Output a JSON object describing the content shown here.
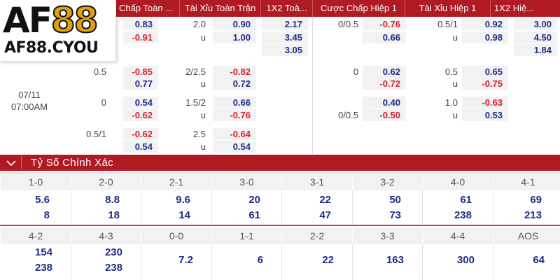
{
  "logo": {
    "brand_a": "AF",
    "brand_n": "88",
    "site": "AF88.CYOU"
  },
  "odds_table": {
    "headers": [
      "Chấp Toàn ...",
      "Tài Xỉu Toàn Trận",
      "1X2 Toà...",
      "Cược Chấp Hiệp 1",
      "Tài Xỉu Hiệp 1",
      "1X2 Hiệ..."
    ],
    "match_date": "07/11",
    "match_time": "07:00AM",
    "rows": [
      {
        "ah_line": "",
        "ah_home": "0.83",
        "ah_away": "-0.91",
        "ou_line": "2.0",
        "ou_u": "u",
        "ou_over": "0.90",
        "ou_under": "1.00",
        "x12": [
          "2.17",
          "3.45",
          "3.05"
        ],
        "h1_ah_line_top": "0/0.5",
        "h1_ah_line_bot": "",
        "h1_ah_a": "-0.76",
        "h1_ah_b": "0.66",
        "h1_ou_line": "0.5/1",
        "h1_ou_u": "u",
        "h1_ou_a": "0.92",
        "h1_ou_b": "0.98",
        "h1_x12": [
          "3.00",
          "4.50",
          "1.84"
        ]
      },
      {
        "ah_line": "0.5",
        "ah_home": "-0.85",
        "ah_away": "0.77",
        "ou_line": "2/2.5",
        "ou_u": "u",
        "ou_over": "-0.82",
        "ou_under": "0.72",
        "h1_ah_line_top": "0",
        "h1_ah_line_bot": "",
        "h1_ah_a": "0.62",
        "h1_ah_b": "-0.72",
        "h1_ou_line": "0.5",
        "h1_ou_u": "u",
        "h1_ou_a": "0.65",
        "h1_ou_b": "-0.75"
      },
      {
        "ah_line": "0",
        "ah_home": "0.54",
        "ah_away": "-0.62",
        "ou_line": "1.5/2",
        "ou_u": "u",
        "ou_over": "0.66",
        "ou_under": "-0.76",
        "h1_ah_line_top": "",
        "h1_ah_line_bot": "0/0.5",
        "h1_ah_a": "0.40",
        "h1_ah_b": "-0.50",
        "h1_ou_line": "1.0",
        "h1_ou_u": "u",
        "h1_ou_a": "-0.63",
        "h1_ou_b": "0.53"
      },
      {
        "ah_line": "0.5/1",
        "ah_home": "-0.62",
        "ah_away": "0.54",
        "ou_line": "2.5",
        "ou_u": "u",
        "ou_over": "-0.64",
        "ou_under": "0.54"
      }
    ]
  },
  "correct_score": {
    "title": "Tỷ Số Chính Xác",
    "row1": {
      "scores": [
        "1-0",
        "2-0",
        "2-1",
        "3-0",
        "3-1",
        "3-2",
        "4-0",
        "4-1"
      ],
      "top": [
        "5.6",
        "8.8",
        "9.6",
        "20",
        "22",
        "50",
        "61",
        "69"
      ],
      "bottom": [
        "8",
        "18",
        "14",
        "61",
        "47",
        "73",
        "238",
        "213"
      ]
    },
    "row2": {
      "scores": [
        "4-2",
        "4-3",
        "0-0",
        "1-1",
        "2-2",
        "3-3",
        "4-4",
        "AOS"
      ],
      "top": [
        "154",
        "230",
        "",
        "",
        "",
        "",
        "",
        ""
      ],
      "bottom": [
        "238",
        "238",
        "",
        "",
        "",
        "",
        "",
        ""
      ],
      "single": [
        "",
        "",
        "7.2",
        "6",
        "22",
        "163",
        "300",
        "64"
      ]
    }
  },
  "colors": {
    "header_red": "#b01a22",
    "odd_blue": "#1e2c8a",
    "odd_red": "#d8202a"
  }
}
